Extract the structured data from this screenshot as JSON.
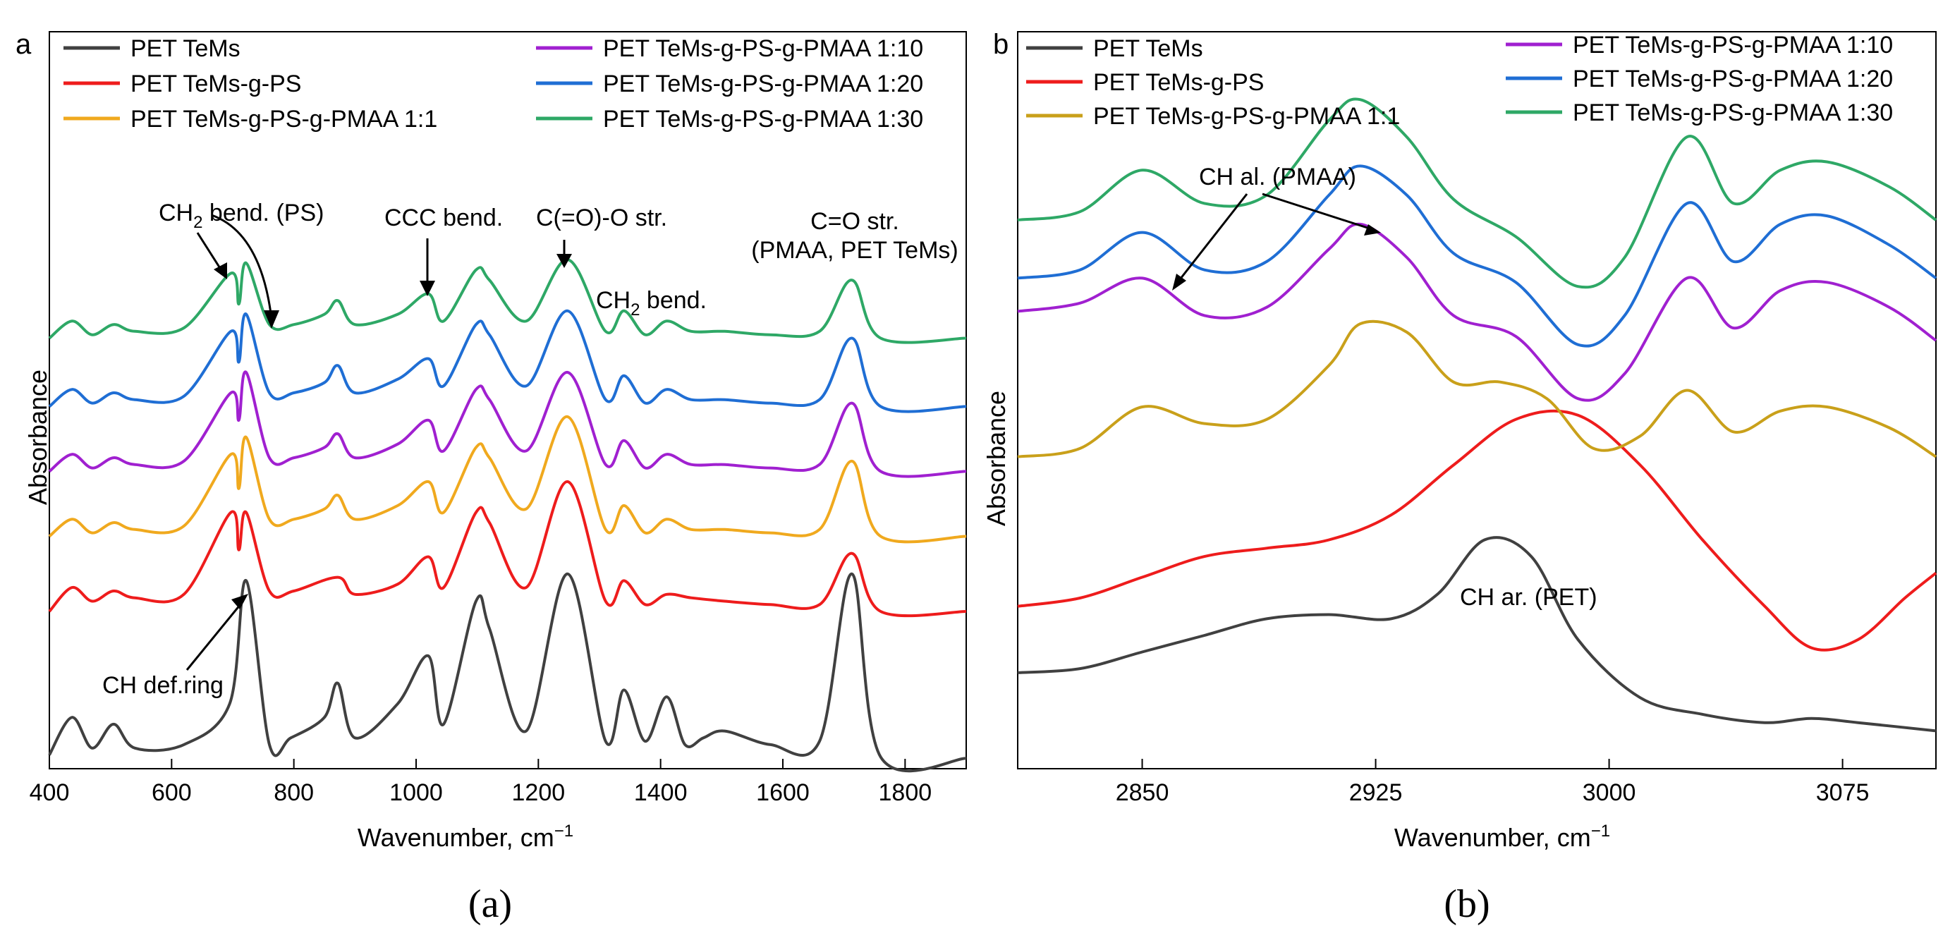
{
  "figure": {
    "caption_a": "(a)",
    "caption_b": "(b)"
  },
  "chart_data": [
    {
      "type": "line",
      "panel": "a",
      "panel_label": "a",
      "xlabel": "Wavenumber, cm",
      "xlabel_sup": "−1",
      "ylabel": "Absorbance",
      "xlim": [
        400,
        1900
      ],
      "ylim": [
        0,
        10
      ],
      "xticks": [
        400,
        600,
        800,
        1000,
        1200,
        1400,
        1600,
        1800
      ],
      "legend_position": "top",
      "series": [
        {
          "name": "PET TeMs",
          "color": "#404040",
          "baseline": 0.15,
          "x": [
            400,
            437,
            470,
            505,
            540,
            620,
            695,
            722,
            760,
            795,
            850,
            872,
            900,
            970,
            1020,
            1045,
            1098,
            1120,
            1180,
            1248,
            1310,
            1340,
            1375,
            1410,
            1440,
            1470,
            1505,
            1580,
            1660,
            1713,
            1760,
            1900
          ],
          "y": [
            0.15,
            0.7,
            0.25,
            0.6,
            0.25,
            0.3,
            0.9,
            2.7,
            0.3,
            0.4,
            0.7,
            1.2,
            0.4,
            0.9,
            1.6,
            0.6,
            2.4,
            2.0,
            0.5,
            2.8,
            0.35,
            1.1,
            0.35,
            1.0,
            0.3,
            0.4,
            0.5,
            0.3,
            0.35,
            2.8,
            0.12,
            0.1
          ]
        },
        {
          "name": "PET TeMs-g-PS",
          "color": "#ee1c1c",
          "baseline": 2.25,
          "x": [
            400,
            437,
            470,
            505,
            540,
            620,
            697,
            710,
            722,
            760,
            800,
            872,
            900,
            970,
            1020,
            1045,
            1098,
            1120,
            1180,
            1248,
            1310,
            1340,
            1375,
            1410,
            1450,
            1505,
            1580,
            1660,
            1713,
            1760,
            1900
          ],
          "y": [
            2.25,
            2.6,
            2.4,
            2.55,
            2.45,
            2.5,
            3.7,
            3.15,
            3.7,
            2.55,
            2.55,
            2.75,
            2.5,
            2.65,
            3.05,
            2.6,
            3.7,
            3.55,
            2.6,
            4.15,
            2.4,
            2.7,
            2.35,
            2.5,
            2.45,
            2.4,
            2.35,
            2.35,
            3.1,
            2.25,
            2.25
          ]
        },
        {
          "name": "PET TeMs-g-PS-g-PMAA 1:1",
          "color": "#f0a91e",
          "baseline": 3.35,
          "x": [
            400,
            437,
            470,
            505,
            540,
            620,
            697,
            710,
            722,
            760,
            800,
            850,
            872,
            900,
            970,
            1020,
            1045,
            1098,
            1120,
            1180,
            1248,
            1310,
            1340,
            1375,
            1410,
            1450,
            1505,
            1580,
            1660,
            1713,
            1760,
            1900
          ],
          "y": [
            3.35,
            3.6,
            3.4,
            3.55,
            3.45,
            3.5,
            4.55,
            4.05,
            4.8,
            3.6,
            3.6,
            3.75,
            3.95,
            3.6,
            3.8,
            4.15,
            3.7,
            4.65,
            4.5,
            3.75,
            5.1,
            3.45,
            3.8,
            3.4,
            3.6,
            3.45,
            3.45,
            3.4,
            3.45,
            4.45,
            3.35,
            3.35
          ]
        },
        {
          "name": "PET TeMs-g-PS-g-PMAA 1:10",
          "color": "#a020d0",
          "baseline": 4.3,
          "x": [
            400,
            437,
            470,
            505,
            540,
            620,
            697,
            710,
            722,
            760,
            800,
            850,
            872,
            900,
            970,
            1020,
            1045,
            1098,
            1120,
            1180,
            1248,
            1310,
            1340,
            1375,
            1410,
            1450,
            1505,
            1580,
            1660,
            1713,
            1760,
            1900
          ],
          "y": [
            4.3,
            4.55,
            4.35,
            4.5,
            4.4,
            4.45,
            5.45,
            5.05,
            5.75,
            4.5,
            4.5,
            4.65,
            4.85,
            4.5,
            4.7,
            5.05,
            4.6,
            5.5,
            5.35,
            4.6,
            5.75,
            4.4,
            4.75,
            4.35,
            4.55,
            4.4,
            4.4,
            4.35,
            4.4,
            5.3,
            4.3,
            4.3
          ]
        },
        {
          "name": "PET TeMs-g-PS-g-PMAA 1:20",
          "color": "#1f6ed4",
          "baseline": 5.25,
          "x": [
            400,
            437,
            470,
            505,
            540,
            620,
            697,
            710,
            722,
            760,
            800,
            850,
            872,
            900,
            970,
            1020,
            1045,
            1098,
            1120,
            1180,
            1248,
            1310,
            1340,
            1375,
            1410,
            1450,
            1505,
            1580,
            1660,
            1713,
            1760,
            1900
          ],
          "y": [
            5.25,
            5.5,
            5.3,
            5.45,
            5.35,
            5.4,
            6.35,
            5.9,
            6.6,
            5.45,
            5.45,
            5.6,
            5.85,
            5.45,
            5.65,
            5.95,
            5.55,
            6.45,
            6.3,
            5.55,
            6.65,
            5.35,
            5.7,
            5.3,
            5.5,
            5.35,
            5.35,
            5.3,
            5.35,
            6.25,
            5.25,
            5.25
          ]
        },
        {
          "name": "PET TeMs-g-PS-g-PMAA 1:30",
          "color": "#2ea866",
          "baseline": 6.25,
          "x": [
            400,
            437,
            470,
            505,
            540,
            620,
            697,
            710,
            722,
            760,
            800,
            850,
            872,
            900,
            970,
            1020,
            1045,
            1098,
            1120,
            1180,
            1248,
            1310,
            1340,
            1375,
            1410,
            1450,
            1505,
            1580,
            1660,
            1713,
            1760,
            1900
          ],
          "y": [
            6.25,
            6.5,
            6.3,
            6.45,
            6.35,
            6.4,
            7.2,
            6.75,
            7.35,
            6.45,
            6.45,
            6.6,
            6.8,
            6.45,
            6.6,
            6.9,
            6.5,
            7.25,
            7.1,
            6.5,
            7.4,
            6.35,
            6.65,
            6.3,
            6.5,
            6.35,
            6.35,
            6.3,
            6.35,
            7.1,
            6.25,
            6.25
          ]
        }
      ],
      "annotations": [
        {
          "text": "CH",
          "sub": "2",
          "rest": " bend. (PS)"
        },
        {
          "text": "CCC bend."
        },
        {
          "text": "C(=O)-O str."
        },
        {
          "text": "C=O str."
        },
        {
          "text": "(PMAA, PET TeMs)"
        },
        {
          "text": "CH",
          "sub": "2",
          "rest": " bend."
        },
        {
          "text": "CH def.ring"
        }
      ]
    },
    {
      "type": "line",
      "panel": "b",
      "panel_label": "b",
      "xlabel": "Wavenumber, cm",
      "xlabel_sup": "−1",
      "ylabel": "Absorbance",
      "xlim": [
        2810,
        3105
      ],
      "ylim": [
        0,
        10
      ],
      "xticks": [
        2850,
        2925,
        3000,
        3075
      ],
      "legend_position": "top",
      "series": [
        {
          "name": "PET TeMs",
          "color": "#404040",
          "x": [
            2810,
            2830,
            2850,
            2870,
            2890,
            2910,
            2930,
            2945,
            2960,
            2975,
            2990,
            3010,
            3030,
            3050,
            3065,
            3080,
            3105
          ],
          "y": [
            0.9,
            0.95,
            1.15,
            1.35,
            1.55,
            1.6,
            1.55,
            1.85,
            2.5,
            2.3,
            1.3,
            0.6,
            0.4,
            0.3,
            0.35,
            0.3,
            0.2
          ]
        },
        {
          "name": "PET TeMs-g-PS",
          "color": "#ee1c1c",
          "x": [
            2810,
            2830,
            2850,
            2870,
            2890,
            2910,
            2930,
            2950,
            2970,
            2990,
            3010,
            3030,
            3050,
            3065,
            3080,
            3095,
            3105
          ],
          "y": [
            1.7,
            1.8,
            2.05,
            2.3,
            2.4,
            2.5,
            2.8,
            3.4,
            3.95,
            4.0,
            3.4,
            2.5,
            1.7,
            1.2,
            1.3,
            1.8,
            2.1
          ]
        },
        {
          "name": "PET TeMs-g-PS-g-PMAA 1:1",
          "color": "#c9a01a",
          "x": [
            2810,
            2830,
            2850,
            2870,
            2890,
            2910,
            2920,
            2935,
            2950,
            2965,
            2980,
            2995,
            3010,
            3025,
            3040,
            3055,
            3070,
            3090,
            3105
          ],
          "y": [
            3.5,
            3.6,
            4.1,
            3.9,
            3.95,
            4.6,
            5.1,
            5.0,
            4.4,
            4.4,
            4.2,
            3.6,
            3.75,
            4.3,
            3.8,
            4.05,
            4.1,
            3.85,
            3.5
          ]
        },
        {
          "name": "PET TeMs-g-PS-g-PMAA 1:10",
          "color": "#a020d0",
          "x": [
            2810,
            2830,
            2850,
            2870,
            2890,
            2910,
            2920,
            2935,
            2950,
            2970,
            2990,
            3005,
            3025,
            3040,
            3055,
            3070,
            3090,
            3105
          ],
          "y": [
            5.25,
            5.35,
            5.65,
            5.2,
            5.3,
            6.0,
            6.3,
            5.9,
            5.2,
            4.95,
            4.2,
            4.5,
            5.65,
            5.05,
            5.5,
            5.6,
            5.3,
            4.9
          ]
        },
        {
          "name": "PET TeMs-g-PS-g-PMAA 1:20",
          "color": "#1f6ed4",
          "x": [
            2810,
            2830,
            2850,
            2870,
            2890,
            2910,
            2920,
            2935,
            2950,
            2970,
            2990,
            3005,
            3025,
            3040,
            3055,
            3070,
            3090,
            3105
          ],
          "y": [
            5.65,
            5.75,
            6.2,
            5.75,
            5.85,
            6.65,
            7.0,
            6.65,
            5.95,
            5.6,
            4.85,
            5.2,
            6.55,
            5.85,
            6.3,
            6.4,
            6.05,
            5.65
          ]
        },
        {
          "name": "PET TeMs-g-PS-g-PMAA 1:30",
          "color": "#2ea866",
          "x": [
            2810,
            2830,
            2850,
            2870,
            2890,
            2910,
            2920,
            2935,
            2950,
            2970,
            2990,
            3005,
            3025,
            3040,
            3055,
            3070,
            3090,
            3105
          ],
          "y": [
            6.35,
            6.45,
            6.95,
            6.55,
            6.65,
            7.55,
            7.8,
            7.35,
            6.6,
            6.15,
            5.55,
            5.9,
            7.35,
            6.55,
            6.95,
            7.05,
            6.75,
            6.35
          ]
        }
      ],
      "annotations": [
        {
          "text": "CH al. (PMAA)"
        },
        {
          "text": "CH ar. (PET)"
        }
      ]
    }
  ]
}
